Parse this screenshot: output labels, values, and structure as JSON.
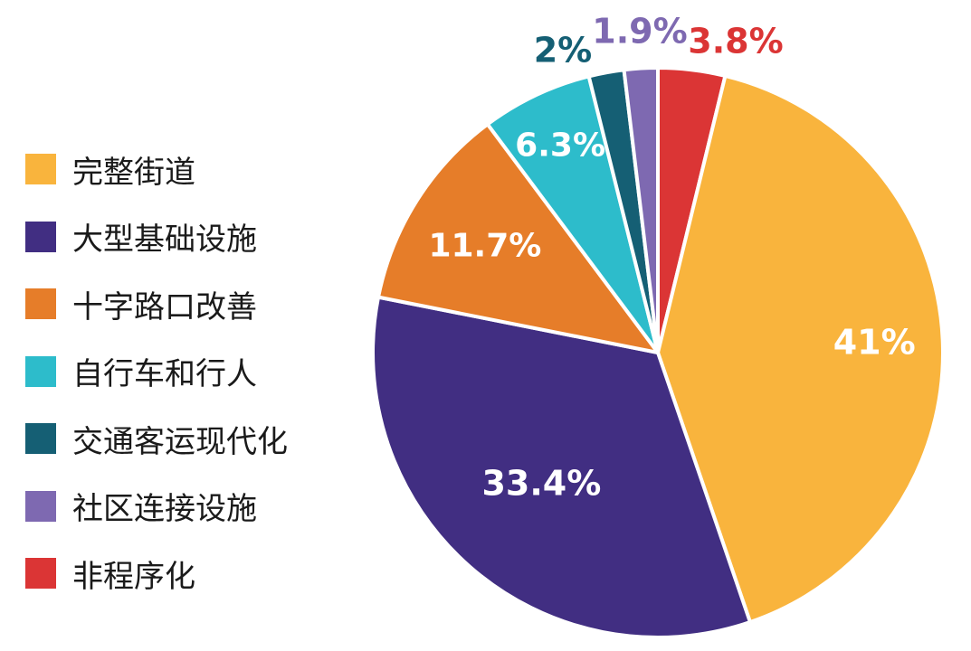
{
  "chart_data": {
    "type": "pie",
    "title": "",
    "categories": [
      "完整街道",
      "大型基础设施",
      "十字路口改善",
      "自行车和行人",
      "交通客运现代化",
      "社区连接设施",
      "非程序化"
    ],
    "values": [
      41,
      33.4,
      11.7,
      6.3,
      2,
      1.9,
      3.8
    ],
    "value_labels": [
      "41%",
      "33.4%",
      "11.7%",
      "6.3%",
      "2%",
      "1.9%",
      "3.8%"
    ],
    "colors": [
      "#F9B43D",
      "#412E82",
      "#E67D29",
      "#2DBCCB",
      "#155F74",
      "#7E69B1",
      "#DB3535"
    ],
    "slice_order": [
      6,
      0,
      1,
      2,
      3,
      4,
      5
    ],
    "start": "12 o'clock",
    "direction": "clockwise",
    "legend_position": "left"
  }
}
